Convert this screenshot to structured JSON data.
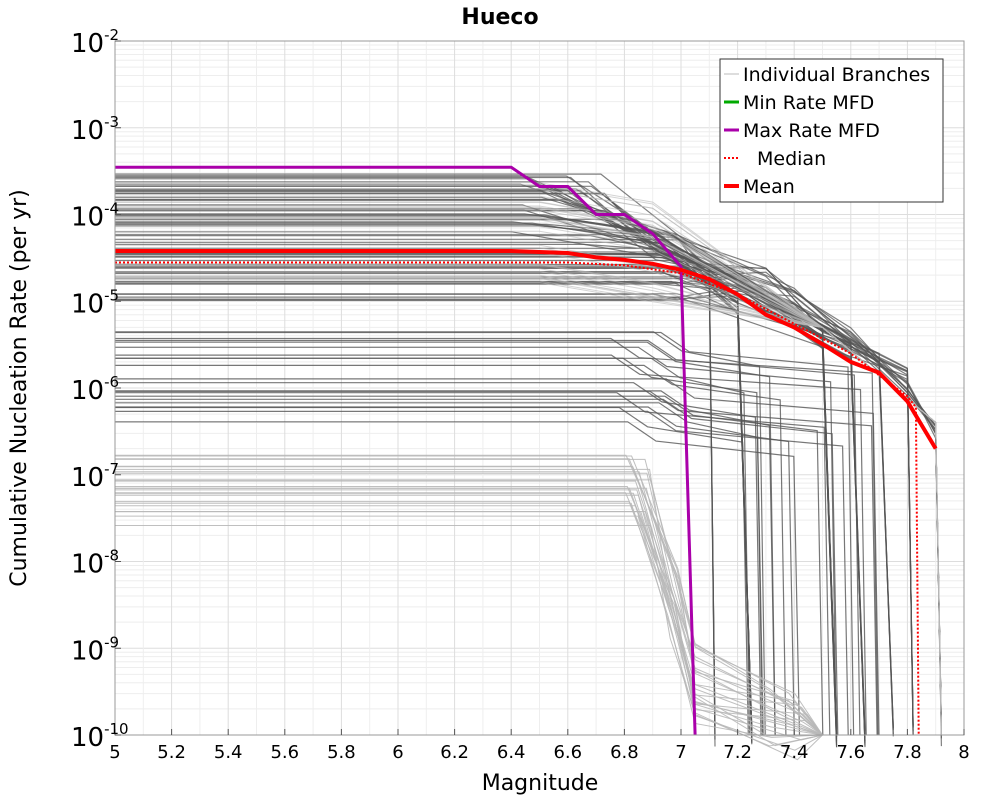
{
  "chart_data": {
    "type": "line",
    "title": "Hueco",
    "xlabel": "Magnitude",
    "ylabel": "Cumulative Nucleation Rate (per yr)",
    "xlim": [
      5,
      8
    ],
    "ylim_log10": [
      -10,
      -2
    ],
    "y_scale": "log",
    "x_ticks": [
      "5",
      "5.2",
      "5.4",
      "5.6",
      "5.8",
      "6",
      "6.2",
      "6.4",
      "6.6",
      "6.8",
      "7",
      "7.2",
      "7.4",
      "7.6",
      "7.8",
      "8"
    ],
    "y_ticks": [
      {
        "base": "10",
        "exp": "-2"
      },
      {
        "base": "10",
        "exp": "-3"
      },
      {
        "base": "10",
        "exp": "-4"
      },
      {
        "base": "10",
        "exp": "-5"
      },
      {
        "base": "10",
        "exp": "-6"
      },
      {
        "base": "10",
        "exp": "-7"
      },
      {
        "base": "10",
        "exp": "-8"
      },
      {
        "base": "10",
        "exp": "-9"
      },
      {
        "base": "10",
        "exp": "-10"
      }
    ],
    "grid": true,
    "legend_position": "top-right",
    "legend": [
      {
        "label": "Individual Branches",
        "color": "#bbbbbb",
        "style": "solid"
      },
      {
        "label": "Min Rate MFD",
        "color": "#00aa00",
        "style": "solid"
      },
      {
        "label": "Max Rate MFD",
        "color": "#aa00aa",
        "style": "solid"
      },
      {
        "label": "Median",
        "color": "#ff0000",
        "style": "dotted"
      },
      {
        "label": "Mean",
        "color": "#ff0000",
        "style": "solid"
      }
    ],
    "series": [
      {
        "name": "Max Rate MFD",
        "color": "#aa00aa",
        "x": [
          5.0,
          6.4,
          6.5,
          6.6,
          6.7,
          6.8,
          6.9,
          7.0,
          7.05
        ],
        "y": [
          0.00035,
          0.00035,
          0.00021,
          0.00021,
          0.0001,
          0.0001,
          6e-05,
          2.5e-05,
          1e-10
        ]
      },
      {
        "name": "Median",
        "color": "#ff0000",
        "x": [
          5.0,
          6.6,
          6.8,
          7.0,
          7.2,
          7.4,
          7.6,
          7.7,
          7.8,
          7.83,
          7.84
        ],
        "y": [
          2.8e-05,
          2.8e-05,
          2.6e-05,
          2.1e-05,
          1.2e-05,
          5.5e-06,
          2.5e-06,
          1.4e-06,
          8e-07,
          6e-07,
          1e-10
        ]
      },
      {
        "name": "Mean",
        "color": "#ff0000",
        "x": [
          5.0,
          6.4,
          6.6,
          6.7,
          6.8,
          6.9,
          7.0,
          7.1,
          7.2,
          7.3,
          7.4,
          7.5,
          7.6,
          7.7,
          7.8,
          7.9
        ],
        "y": [
          3.8e-05,
          3.8e-05,
          3.6e-05,
          3.2e-05,
          3e-05,
          2.7e-05,
          2.3e-05,
          1.8e-05,
          1.2e-05,
          7e-06,
          5e-06,
          3.2e-06,
          2e-06,
          1.5e-06,
          7e-07,
          2e-07
        ]
      }
    ],
    "branch_bands": {
      "count_dark": 70,
      "count_light": 26,
      "dark_color": "#555555",
      "light_color": "#b8b8b8"
    }
  }
}
